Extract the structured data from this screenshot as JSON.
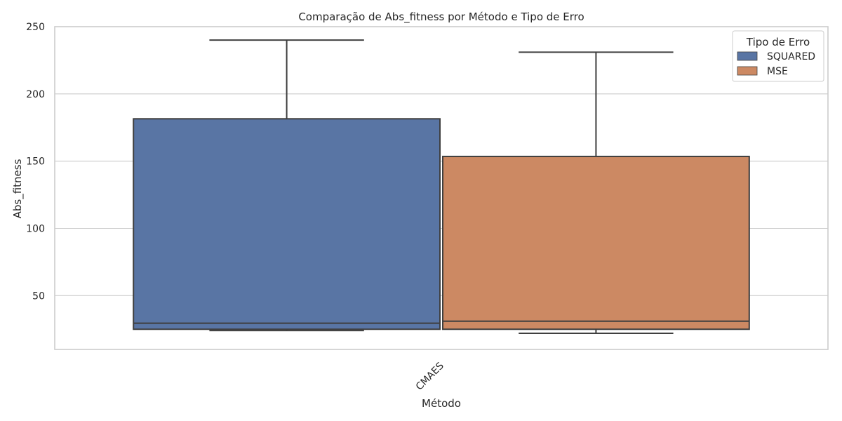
{
  "chart_data": {
    "type": "boxplot",
    "title": "Comparação de Abs_fitness por Método e Tipo de Erro",
    "xlabel": "Método",
    "ylabel": "Abs_fitness",
    "categories": [
      "CMAES"
    ],
    "ylim": [
      10,
      250
    ],
    "yticks": [
      50,
      100,
      150,
      200,
      250
    ],
    "grid": true,
    "legend": {
      "title": "Tipo de Erro",
      "position": "top-right"
    },
    "series": [
      {
        "name": "SQUARED",
        "color": "#5975a4",
        "stats": {
          "whisker_low": 24,
          "q1": 25,
          "median": 29.5,
          "q3": 181.5,
          "whisker_high": 240
        }
      },
      {
        "name": "MSE",
        "color": "#cc8963",
        "stats": {
          "whisker_low": 22,
          "q1": 25,
          "median": 31,
          "q3": 153.5,
          "whisker_high": 231
        }
      }
    ]
  }
}
